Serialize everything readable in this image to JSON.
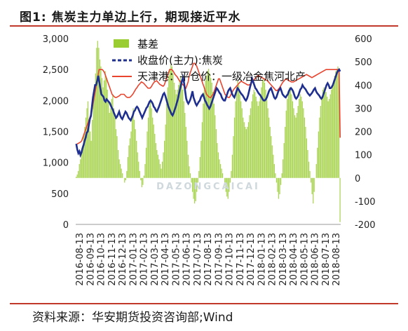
{
  "header": {
    "figure_label": "图1:",
    "title": "焦炭主力单边上行，期现接近平水"
  },
  "footer": {
    "source": "资料来源：华安期货投资咨询部;Wind"
  },
  "colors": {
    "basis": "#9acd32",
    "futures": "#1f2f8f",
    "spot": "#e8442e",
    "rule": "#c0392b"
  },
  "chart_data": {
    "type": "line",
    "title": "",
    "x_ticks": [
      "2016-08-13",
      "2016-09-13",
      "2016-10-13",
      "2016-11-13",
      "2016-12-13",
      "2017-01-13",
      "2017-02-13",
      "2017-03-13",
      "2017-04-13",
      "2017-05-13",
      "2017-06-13",
      "2017-07-13",
      "2017-08-13",
      "2017-09-13",
      "2017-10-13",
      "2017-11-13",
      "2017-12-13",
      "2018-01-13",
      "2018-02-13",
      "2018-03-13",
      "2018-04-13",
      "2018-05-13",
      "2018-06-13",
      "2018-07-13",
      "2018-08-13"
    ],
    "y_left": {
      "min": 0,
      "max": 3000,
      "ticks": [
        "0",
        "500",
        "1,000",
        "1,500",
        "2,000",
        "2,500",
        "3,000"
      ]
    },
    "y_right": {
      "min": -200,
      "max": 600,
      "ticks": [
        "-200",
        "-100",
        "0",
        "100",
        "200",
        "300",
        "400",
        "500",
        "600"
      ]
    },
    "legend_position": "top-center",
    "series": [
      {
        "name": "基差",
        "type": "bar",
        "axis": "right",
        "values": [
          5,
          15,
          30,
          60,
          80,
          120,
          140,
          180,
          220,
          260,
          300,
          330,
          250,
          200,
          160,
          250,
          330,
          390,
          450,
          560,
          590,
          560,
          510,
          480,
          430,
          390,
          420,
          460,
          430,
          380,
          330,
          280,
          300,
          340,
          360,
          300,
          260,
          210,
          180,
          120,
          80,
          60,
          40,
          20,
          0,
          -20,
          -10,
          30,
          90,
          140,
          170,
          200,
          260,
          300,
          250,
          210,
          160,
          110,
          70,
          30,
          -10,
          -40,
          -30,
          10,
          60,
          130,
          200,
          260,
          310,
          340,
          300,
          260,
          230,
          190,
          150,
          120,
          100,
          80,
          60,
          40,
          70,
          110,
          160,
          230,
          320,
          390,
          440,
          470,
          490,
          480,
          450,
          410,
          380,
          360,
          380,
          400,
          420,
          440,
          410,
          380,
          330,
          280,
          220,
          160,
          100,
          50,
          20,
          -20,
          -60,
          -90,
          -110,
          -100,
          -60,
          -20,
          30,
          90,
          160,
          240,
          320,
          380,
          420,
          440,
          460,
          470,
          450,
          430,
          410,
          370,
          320,
          270,
          210,
          150,
          110,
          80,
          60,
          40,
          20,
          0,
          -30,
          -60,
          -80,
          -90,
          -60,
          -20,
          30,
          100,
          180,
          260,
          330,
          390,
          420,
          400,
          360,
          330,
          300,
          260,
          240,
          220,
          210,
          220,
          240,
          270,
          300,
          330,
          360,
          380,
          370,
          350,
          330,
          310,
          330,
          360,
          390,
          420,
          430,
          410,
          380,
          340,
          300,
          260,
          220,
          180,
          140,
          100,
          60,
          20,
          -20,
          -60,
          -90,
          -70,
          -30,
          20,
          80,
          150,
          220,
          290,
          340,
          370,
          390,
          380,
          360,
          330,
          300,
          270,
          260,
          280,
          310,
          340,
          360,
          350,
          330,
          300,
          260,
          220,
          170,
          120,
          70,
          30,
          -20,
          -70,
          -110,
          -60,
          0,
          60,
          130,
          200,
          260,
          310,
          350,
          380,
          390,
          380,
          370,
          350,
          330,
          340,
          360,
          380,
          400,
          420,
          440,
          460,
          470,
          480,
          470,
          -190
        ]
      },
      {
        "name": "收盘价(主力):焦炭",
        "type": "line",
        "axis": "left",
        "values": [
          1300,
          1210,
          1150,
          1180,
          1120,
          1160,
          1230,
          1280,
          1350,
          1400,
          1480,
          1500,
          1600,
          1700,
          1750,
          1900,
          2050,
          2150,
          2250,
          2250,
          2320,
          2400,
          2300,
          2200,
          2100,
          2080,
          2060,
          2000,
          1980,
          2020,
          2000,
          1980,
          1960,
          1920,
          1880,
          1850,
          1800,
          1760,
          1720,
          1740,
          1780,
          1820,
          1760,
          1720,
          1700,
          1740,
          1780,
          1820,
          1800,
          1760,
          1720,
          1700,
          1680,
          1720,
          1760,
          1820,
          1840,
          1880,
          1900,
          1880,
          1840,
          1800,
          1760,
          1720,
          1760,
          1800,
          1840,
          1880,
          1900,
          1940,
          1980,
          2000,
          1980,
          1950,
          1900,
          1880,
          1840,
          1820,
          1860,
          1900,
          1950,
          2000,
          2050,
          2100,
          2120,
          2080,
          2020,
          1960,
          1900,
          1860,
          1820,
          1780,
          1760,
          1800,
          1850,
          1900,
          1960,
          2020,
          2100,
          2180,
          2250,
          2320,
          2370,
          2280,
          2150,
          2030,
          1980,
          1950,
          1980,
          2020,
          2080,
          2150,
          2050,
          2000,
          1950,
          1920,
          1950,
          1980,
          2000,
          2050,
          2080,
          2100,
          2050,
          2000,
          1970,
          1930,
          1900,
          1870,
          1900,
          1950,
          2000,
          2050,
          2100,
          2150,
          2200,
          2180,
          2150,
          2120,
          2100,
          2050,
          2020,
          2000,
          2000,
          2050,
          2100,
          2150,
          2180,
          2200,
          2150,
          2100,
          2070,
          2050,
          2100,
          2150,
          2200,
          2180,
          2150,
          2120,
          2100,
          2080,
          2050,
          2020,
          2000,
          2030,
          2080,
          2150,
          2220,
          2280,
          2350,
          2300,
          2250,
          2200,
          2180,
          2150,
          2120,
          2100,
          2080,
          2050,
          2020,
          2000,
          2000,
          2020,
          2050,
          2100,
          2150,
          2180,
          2200,
          2150,
          2100,
          2050,
          2030,
          2050,
          2100,
          2150,
          2180,
          2200,
          2150,
          2100,
          2080,
          2060,
          2050,
          2080,
          2100,
          2150,
          2180,
          2200,
          2180,
          2150,
          2100,
          2050,
          2030,
          2050,
          2080,
          2130,
          2180,
          2200,
          2250,
          2220,
          2200,
          2180,
          2150,
          2120,
          2100,
          2080,
          2100,
          2120,
          2150,
          2180,
          2200,
          2150,
          2120,
          2100,
          2080,
          2050,
          2030,
          2050,
          2100,
          2150,
          2200,
          2250,
          2280,
          2250,
          2200,
          2200,
          2220,
          2250,
          2300,
          2350,
          2400,
          2450,
          2480,
          2500,
          2470
        ]
      },
      {
        "name": "天津港：平仓价：一级冶金焦河北产",
        "type": "line",
        "axis": "left",
        "values": [
          1290,
          1300,
          1310,
          1320,
          1330,
          1350,
          1400,
          1450,
          1500,
          1550,
          1600,
          1650,
          1700,
          1750,
          1800,
          1900,
          2000,
          2100,
          2200,
          2300,
          2400,
          2500,
          2500,
          2500,
          2500,
          2480,
          2450,
          2400,
          2350,
          2300,
          2250,
          2200,
          2150,
          2100,
          2080,
          2060,
          2050,
          2050,
          2060,
          2070,
          2080,
          2100,
          2100,
          2100,
          2100,
          2080,
          2060,
          2050,
          2050,
          2050,
          2060,
          2080,
          2100,
          2130,
          2160,
          2190,
          2210,
          2240,
          2260,
          2280,
          2300,
          2290,
          2280,
          2260,
          2240,
          2220,
          2200,
          2200,
          2200,
          2220,
          2250,
          2280,
          2300,
          2310,
          2320,
          2300,
          2280,
          2260,
          2250,
          2240,
          2230,
          2250,
          2300,
          2350,
          2400,
          2450,
          2500,
          2500,
          2500,
          2480,
          2450,
          2420,
          2400,
          2380,
          2350,
          2320,
          2300,
          2280,
          2260,
          2240,
          2220,
          2200,
          2250,
          2300,
          2400,
          2450,
          2500,
          2550,
          2600,
          2600,
          2580,
          2550,
          2500,
          2450,
          2400,
          2350,
          2300,
          2250,
          2200,
          2150,
          2100,
          2080,
          2060,
          2050,
          2050,
          2080,
          2100,
          2150,
          2200,
          2250,
          2300,
          2350,
          2350,
          2300,
          2250,
          2200,
          2150,
          2100,
          2080,
          2060,
          2050,
          2050,
          2080,
          2120,
          2150,
          2180,
          2200,
          2220,
          2240,
          2260,
          2280,
          2300,
          2310,
          2300,
          2290,
          2280,
          2270,
          2260,
          2250,
          2250,
          2260,
          2280,
          2300,
          2320,
          2340,
          2360,
          2380,
          2400,
          2400,
          2390,
          2380,
          2370,
          2360,
          2350,
          2340,
          2330,
          2320,
          2300,
          2280,
          2260,
          2240,
          2220,
          2200,
          2180,
          2160,
          2160,
          2180,
          2200,
          2230,
          2260,
          2290,
          2310,
          2330,
          2350,
          2340,
          2330,
          2320,
          2310,
          2300,
          2300,
          2300,
          2310,
          2320,
          2330,
          2340,
          2350,
          2360,
          2370,
          2380,
          2390,
          2400,
          2410,
          2420,
          2410,
          2400,
          2390,
          2380,
          2370,
          2380,
          2390,
          2400,
          2410,
          2420,
          2430,
          2440,
          2450,
          2460,
          2470,
          2480,
          2490,
          2500,
          2500,
          2500,
          2500,
          2500,
          2500,
          2500,
          2500,
          2500,
          2500,
          2500,
          2500,
          2500,
          1400
        ]
      }
    ],
    "watermark": "DAZONGCAICAI"
  }
}
